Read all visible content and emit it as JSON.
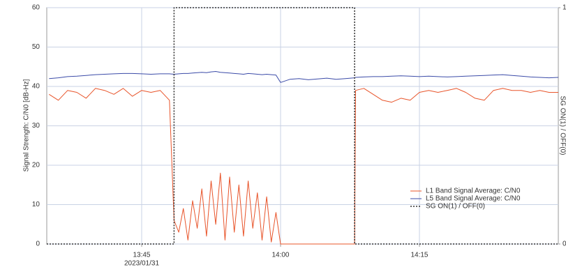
{
  "chart_data": {
    "type": "line",
    "y_label": "Signal Strength: C/N0 [dB-Hz]",
    "y2_label": "SG ON(1) / OFF(0)",
    "x_sublabel": "2023/01/31",
    "x": [
      815,
      816,
      817,
      818,
      819,
      820,
      821,
      822,
      823,
      824,
      825,
      826,
      827,
      828,
      828.5,
      829,
      829.5,
      830,
      830.5,
      831,
      831.5,
      832,
      832.5,
      833,
      833.5,
      834,
      834.5,
      835,
      835.5,
      836,
      836.5,
      837,
      837.5,
      838,
      838.5,
      839,
      839.5,
      840,
      841,
      842,
      843,
      844,
      845,
      846,
      847,
      848,
      848.1,
      849,
      850,
      851,
      852,
      853,
      854,
      855,
      856,
      857,
      858,
      859,
      860,
      861,
      862,
      863,
      864,
      865,
      866,
      867,
      868,
      869,
      870
    ],
    "series": [
      {
        "name": "L1 Band Signal Average: C/N0",
        "color": "#e8542a",
        "values": [
          38,
          36.5,
          39,
          38.5,
          37,
          39.5,
          39,
          38,
          39.5,
          37.5,
          39,
          38.5,
          39,
          36.5,
          6,
          3,
          9,
          1,
          11,
          4,
          14,
          2,
          16,
          5,
          18,
          1,
          17,
          3,
          15,
          2,
          16,
          4,
          13,
          1,
          12,
          0.5,
          8,
          0,
          0,
          0,
          0,
          0,
          0,
          0,
          0,
          0,
          39,
          39.5,
          38,
          36.5,
          36,
          37,
          36.5,
          38.5,
          39,
          38.5,
          39,
          39.5,
          38.5,
          37,
          36.5,
          39,
          39.5,
          39,
          39,
          38.5,
          39,
          38.5,
          38.5
        ]
      },
      {
        "name": "L5 Band Signal Average: C/N0",
        "color": "#3b4ba8",
        "values": [
          42,
          42.2,
          42.5,
          42.6,
          42.8,
          43,
          43.1,
          43.2,
          43.3,
          43.3,
          43.2,
          43.1,
          43.2,
          43.2,
          43.1,
          43.2,
          43.3,
          43.3,
          43.4,
          43.5,
          43.6,
          43.5,
          43.7,
          43.8,
          43.6,
          43.5,
          43.4,
          43.3,
          43.2,
          43.1,
          43.3,
          43.2,
          43.1,
          43,
          43.1,
          43,
          42.9,
          41,
          41.8,
          42,
          41.7,
          41.9,
          42.1,
          41.8,
          42,
          42.2,
          42.3,
          42.4,
          42.5,
          42.5,
          42.6,
          42.7,
          42.6,
          42.5,
          42.6,
          42.5,
          42.4,
          42.5,
          42.6,
          42.7,
          42.8,
          42.9,
          43,
          42.8,
          42.6,
          42.4,
          42.3,
          42.2,
          42.3
        ]
      },
      {
        "name": "SG ON(1) / OFF(0)",
        "color": "#333333",
        "axis": "y2",
        "dashed": true,
        "x": [
          814.75,
          828.5,
          828.5,
          848,
          848,
          870
        ],
        "values": [
          0,
          0,
          1,
          1,
          0,
          0
        ]
      }
    ],
    "xlim": [
      814.75,
      870
    ],
    "xticks": [
      {
        "value": 825,
        "label": "13:45"
      },
      {
        "value": 840,
        "label": "14:00"
      },
      {
        "value": 855,
        "label": "14:15"
      }
    ],
    "ylim": [
      0,
      60
    ],
    "yticks": [
      0,
      10,
      20,
      30,
      40,
      50,
      60
    ],
    "y2lim": [
      0,
      1
    ],
    "y2ticks": [
      0,
      1
    ],
    "grid": true,
    "legend": "lower right"
  }
}
